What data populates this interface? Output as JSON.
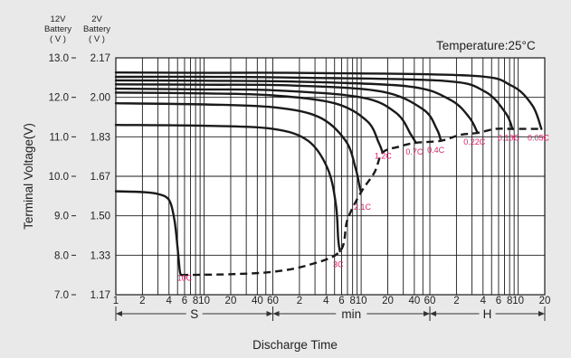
{
  "chart_data": {
    "type": "line",
    "title": "",
    "temperature_label": "Temperature:25°C",
    "ylabel": "Terminal Voltage(V)",
    "xlabel": "Discharge Time",
    "header_12v": [
      "12V",
      "Battery",
      "( V )"
    ],
    "header_2v": [
      "2V",
      "Battery",
      "( V )"
    ],
    "y12_ticks": [
      "13.0",
      "12.0",
      "11.0",
      "10.0",
      "9.0",
      "8.0",
      "7.0"
    ],
    "y2_ticks": [
      "2.17",
      "2.00",
      "1.83",
      "1.67",
      "1.50",
      "1.33",
      "1.17"
    ],
    "ylim": [
      7.0,
      13.0
    ],
    "x_scale": "log",
    "x_units": "seconds",
    "x_ticks": [
      {
        "label": "1",
        "value": 1
      },
      {
        "label": "2",
        "value": 2
      },
      {
        "label": "4",
        "value": 4
      },
      {
        "label": "6",
        "value": 6
      },
      {
        "label": "8",
        "value": 8
      },
      {
        "label": "10",
        "value": 10
      },
      {
        "label": "20",
        "value": 20
      },
      {
        "label": "40",
        "value": 40
      },
      {
        "label": "60",
        "value": 60
      },
      {
        "label": "2",
        "value": 120
      },
      {
        "label": "4",
        "value": 240
      },
      {
        "label": "6",
        "value": 360
      },
      {
        "label": "8",
        "value": 480
      },
      {
        "label": "10",
        "value": 600
      },
      {
        "label": "20",
        "value": 1200
      },
      {
        "label": "40",
        "value": 2400
      },
      {
        "label": "60",
        "value": 3600
      },
      {
        "label": "2",
        "value": 7200
      },
      {
        "label": "4",
        "value": 14400
      },
      {
        "label": "6",
        "value": 21600
      },
      {
        "label": "8",
        "value": 28800
      },
      {
        "label": "10",
        "value": 36000
      },
      {
        "label": "20",
        "value": 72000
      }
    ],
    "grid_x_values": [
      1,
      2,
      3,
      4,
      5,
      6,
      7,
      8,
      9,
      10,
      20,
      30,
      40,
      50,
      60,
      120,
      180,
      240,
      300,
      360,
      420,
      480,
      540,
      600,
      1200,
      1800,
      2400,
      3000,
      3600,
      7200,
      10800,
      14400,
      18000,
      21600,
      25200,
      28800,
      32400,
      36000,
      72000
    ],
    "unit_labels": [
      {
        "label": "S",
        "from": 1,
        "to": 60
      },
      {
        "label": "min",
        "from": 60,
        "to": 3600
      },
      {
        "label": "H",
        "from": 3600,
        "to": 72000
      }
    ],
    "grid": true,
    "series": [
      {
        "name": "10C",
        "label_at": [
          6,
          7.35
        ],
        "points": [
          [
            1,
            9.62
          ],
          [
            2,
            9.6
          ],
          [
            3,
            9.55
          ],
          [
            4,
            9.4
          ],
          [
            4.6,
            8.9
          ],
          [
            5.0,
            8.2
          ],
          [
            5.3,
            7.6
          ],
          [
            5.5,
            7.5
          ]
        ]
      },
      {
        "name": "3C",
        "label_at": [
          330,
          7.7
        ],
        "points": [
          [
            1,
            11.3
          ],
          [
            10,
            11.28
          ],
          [
            60,
            11.2
          ],
          [
            150,
            10.9
          ],
          [
            250,
            10.2
          ],
          [
            310,
            9.3
          ],
          [
            330,
            8.4
          ],
          [
            345,
            8.1
          ]
        ]
      },
      {
        "name": "2.1C",
        "label_at": [
          620,
          9.15
        ],
        "points": [
          [
            1,
            11.85
          ],
          [
            10,
            11.82
          ],
          [
            60,
            11.75
          ],
          [
            200,
            11.5
          ],
          [
            400,
            10.9
          ],
          [
            520,
            10.2
          ],
          [
            580,
            9.7
          ],
          [
            600,
            9.6
          ]
        ]
      },
      {
        "name": "1.2C",
        "label_at": [
          1060,
          10.45
        ],
        "points": [
          [
            1,
            12.12
          ],
          [
            10,
            12.1
          ],
          [
            60,
            12.05
          ],
          [
            300,
            11.85
          ],
          [
            700,
            11.4
          ],
          [
            950,
            10.85
          ],
          [
            1050,
            10.6
          ]
        ]
      },
      {
        "name": "0.7C",
        "label_at": [
          2400,
          10.55
        ],
        "points": [
          [
            1,
            12.22
          ],
          [
            10,
            12.2
          ],
          [
            60,
            12.18
          ],
          [
            600,
            12.0
          ],
          [
            1500,
            11.6
          ],
          [
            2200,
            11.05
          ],
          [
            2500,
            10.85
          ]
        ]
      },
      {
        "name": "0.4C",
        "label_at": [
          4200,
          10.6
        ],
        "points": [
          [
            1,
            12.33
          ],
          [
            10,
            12.32
          ],
          [
            100,
            12.3
          ],
          [
            1000,
            12.15
          ],
          [
            3000,
            11.7
          ],
          [
            4300,
            11.2
          ],
          [
            4800,
            10.9
          ]
        ]
      },
      {
        "name": "0.22C",
        "label_at": [
          11500,
          10.8
        ],
        "points": [
          [
            1,
            12.43
          ],
          [
            10,
            12.42
          ],
          [
            100,
            12.4
          ],
          [
            2000,
            12.28
          ],
          [
            6000,
            11.95
          ],
          [
            10000,
            11.5
          ],
          [
            12500,
            11.1
          ]
        ]
      },
      {
        "name": "0.10C",
        "label_at": [
          28000,
          10.9
        ],
        "points": [
          [
            1,
            12.52
          ],
          [
            10,
            12.52
          ],
          [
            100,
            12.5
          ],
          [
            5000,
            12.42
          ],
          [
            15000,
            12.15
          ],
          [
            26000,
            11.6
          ],
          [
            31000,
            11.2
          ]
        ]
      },
      {
        "name": "0.05C",
        "label_at": [
          61000,
          10.9
        ],
        "points": [
          [
            1,
            12.63
          ],
          [
            10,
            12.62
          ],
          [
            100,
            12.62
          ],
          [
            10000,
            12.55
          ],
          [
            30000,
            12.3
          ],
          [
            52000,
            11.8
          ],
          [
            66000,
            11.2
          ]
        ]
      }
    ],
    "end_voltage_curve": [
      [
        5.5,
        7.5
      ],
      [
        20,
        7.52
      ],
      [
        60,
        7.58
      ],
      [
        150,
        7.75
      ],
      [
        345,
        8.1
      ],
      [
        420,
        8.9
      ],
      [
        600,
        9.6
      ],
      [
        850,
        10.1
      ],
      [
        1050,
        10.6
      ],
      [
        1600,
        10.75
      ],
      [
        2500,
        10.85
      ],
      [
        4800,
        10.9
      ],
      [
        8000,
        11.05
      ],
      [
        12500,
        11.1
      ],
      [
        20000,
        11.2
      ],
      [
        31000,
        11.2
      ],
      [
        66000,
        11.2
      ]
    ]
  }
}
